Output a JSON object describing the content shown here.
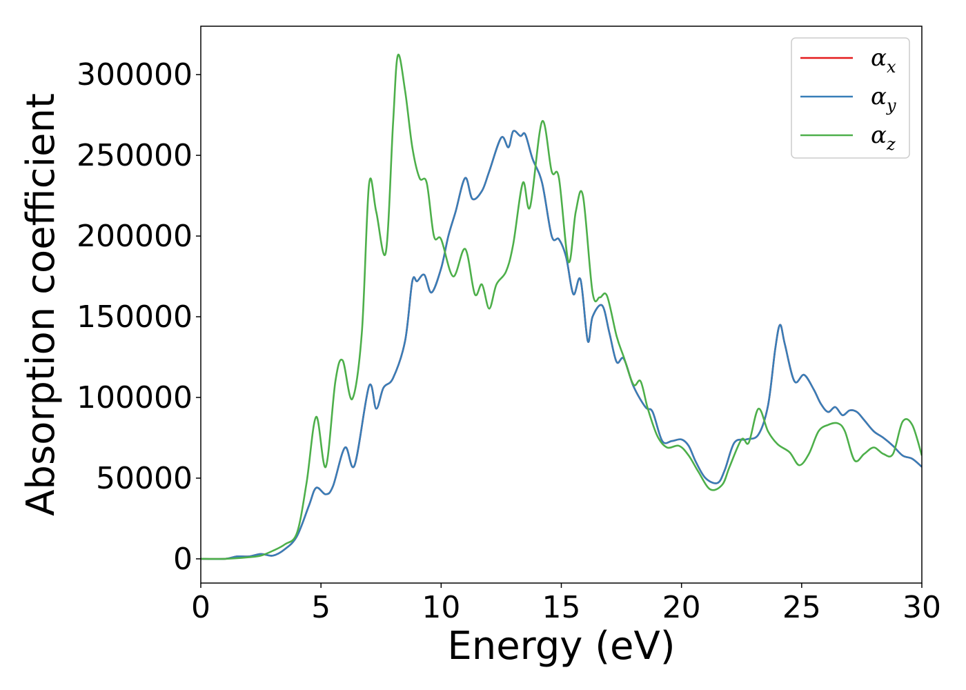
{
  "chart_data": {
    "type": "line",
    "title": "",
    "xlabel": "Energy (eV)",
    "ylabel": "Absorption coefficient",
    "xlim": [
      0,
      30
    ],
    "ylim": [
      -15000,
      330000
    ],
    "xticks": [
      0,
      5,
      10,
      15,
      20,
      25,
      30
    ],
    "yticks": [
      0,
      50000,
      100000,
      150000,
      200000,
      250000,
      300000
    ],
    "grid": false,
    "legend_position": "top-right",
    "series": [
      {
        "name": "α",
        "subscript": "x",
        "color": "#e41a1c",
        "x": [
          0,
          1,
          1.5,
          2,
          2.5,
          3,
          3.5,
          4,
          4.5,
          4.8,
          5.2,
          5.5,
          6,
          6.4,
          7,
          7.3,
          7.6,
          8,
          8.5,
          8.8,
          9,
          9.3,
          9.6,
          10,
          10.3,
          10.6,
          11,
          11.3,
          11.7,
          12,
          12.5,
          12.8,
          13,
          13.3,
          13.5,
          13.8,
          14.2,
          14.6,
          14.9,
          15.2,
          15.5,
          15.8,
          16.1,
          16.3,
          16.7,
          17,
          17.3,
          17.6,
          18,
          18.5,
          18.8,
          19.2,
          19.6,
          20,
          20.3,
          20.6,
          21,
          21.5,
          21.8,
          22.2,
          22.7,
          23.2,
          23.6,
          23.9,
          24.1,
          24.3,
          24.7,
          25.1,
          25.5,
          25.8,
          26.1,
          26.4,
          26.7,
          27,
          27.3,
          27.6,
          28,
          28.4,
          28.8,
          29.2,
          29.6,
          30
        ],
        "values": [
          0,
          0,
          1500,
          1500,
          3000,
          2000,
          6000,
          14000,
          33000,
          44000,
          40000,
          45000,
          69000,
          58000,
          107000,
          93000,
          106000,
          112000,
          135000,
          172000,
          172000,
          176000,
          165000,
          180000,
          200000,
          215000,
          236000,
          223000,
          228000,
          240000,
          261000,
          255000,
          265000,
          262000,
          263000,
          248000,
          233000,
          200000,
          198000,
          187000,
          164000,
          173000,
          135000,
          150000,
          157000,
          140000,
          122000,
          124000,
          107000,
          94000,
          91000,
          73000,
          73000,
          74000,
          70000,
          60000,
          50000,
          47000,
          55000,
          72000,
          74000,
          77000,
          95000,
          130000,
          145000,
          133000,
          110000,
          114000,
          105000,
          96000,
          91000,
          94000,
          89000,
          92000,
          91000,
          86000,
          79000,
          75000,
          70000,
          64000,
          62000,
          57000
        ]
      },
      {
        "name": "α",
        "subscript": "y",
        "color": "#377eb8",
        "x": [
          0,
          1,
          1.5,
          2,
          2.5,
          3,
          3.5,
          4,
          4.5,
          4.8,
          5.2,
          5.5,
          6,
          6.4,
          7,
          7.3,
          7.6,
          8,
          8.5,
          8.8,
          9,
          9.3,
          9.6,
          10,
          10.3,
          10.6,
          11,
          11.3,
          11.7,
          12,
          12.5,
          12.8,
          13,
          13.3,
          13.5,
          13.8,
          14.2,
          14.6,
          14.9,
          15.2,
          15.5,
          15.8,
          16.1,
          16.3,
          16.7,
          17,
          17.3,
          17.6,
          18,
          18.5,
          18.8,
          19.2,
          19.6,
          20,
          20.3,
          20.6,
          21,
          21.5,
          21.8,
          22.2,
          22.7,
          23.2,
          23.6,
          23.9,
          24.1,
          24.3,
          24.7,
          25.1,
          25.5,
          25.8,
          26.1,
          26.4,
          26.7,
          27,
          27.3,
          27.6,
          28,
          28.4,
          28.8,
          29.2,
          29.6,
          30
        ],
        "values": [
          0,
          0,
          1500,
          1500,
          3000,
          2000,
          6000,
          14000,
          33000,
          44000,
          40000,
          45000,
          69000,
          58000,
          107000,
          93000,
          106000,
          112000,
          135000,
          172000,
          172000,
          176000,
          165000,
          180000,
          200000,
          215000,
          236000,
          223000,
          228000,
          240000,
          261000,
          255000,
          265000,
          262000,
          263000,
          248000,
          233000,
          200000,
          198000,
          187000,
          164000,
          173000,
          135000,
          150000,
          157000,
          140000,
          122000,
          124000,
          107000,
          94000,
          91000,
          73000,
          73000,
          74000,
          70000,
          60000,
          50000,
          47000,
          55000,
          72000,
          74000,
          77000,
          95000,
          130000,
          145000,
          133000,
          110000,
          114000,
          105000,
          96000,
          91000,
          94000,
          89000,
          92000,
          91000,
          86000,
          79000,
          75000,
          70000,
          64000,
          62000,
          57000
        ]
      },
      {
        "name": "α",
        "subscript": "z",
        "color": "#4daf4a",
        "x": [
          0,
          1,
          2,
          2.5,
          3,
          3.5,
          4,
          4.4,
          4.8,
          5.2,
          5.6,
          5.9,
          6.3,
          6.7,
          7.0,
          7.3,
          7.7,
          8.0,
          8.2,
          8.5,
          8.8,
          9.1,
          9.4,
          9.7,
          10.0,
          10.5,
          11.0,
          11.4,
          11.7,
          12.0,
          12.3,
          12.7,
          13.0,
          13.4,
          13.7,
          14.2,
          14.6,
          14.9,
          15.3,
          15.6,
          15.9,
          16.3,
          16.6,
          16.9,
          17.3,
          17.6,
          18.0,
          18.3,
          18.6,
          19.0,
          19.4,
          19.9,
          20.3,
          20.7,
          21.2,
          21.7,
          22.0,
          22.5,
          22.8,
          23.2,
          23.6,
          24.0,
          24.5,
          24.9,
          25.3,
          25.7,
          26.1,
          26.5,
          26.8,
          27.2,
          27.6,
          28.0,
          28.4,
          28.8,
          29.2,
          29.6,
          30
        ],
        "values": [
          0,
          0,
          1000,
          2000,
          5000,
          9000,
          16000,
          47000,
          88000,
          57000,
          110000,
          123000,
          99000,
          140000,
          232000,
          215000,
          190000,
          270000,
          312000,
          290000,
          255000,
          236000,
          233000,
          200000,
          198000,
          175000,
          192000,
          164000,
          170000,
          155000,
          170000,
          178000,
          195000,
          233000,
          218000,
          271000,
          240000,
          236000,
          184000,
          215000,
          225000,
          165000,
          162000,
          163000,
          138000,
          125000,
          108000,
          110000,
          93000,
          76000,
          69000,
          70000,
          64000,
          54000,
          43000,
          46000,
          57000,
          74000,
          72000,
          93000,
          79000,
          71000,
          66000,
          58000,
          65000,
          79000,
          83000,
          84000,
          79000,
          61000,
          65000,
          69000,
          65000,
          65000,
          85000,
          83000,
          64000
        ]
      }
    ]
  }
}
